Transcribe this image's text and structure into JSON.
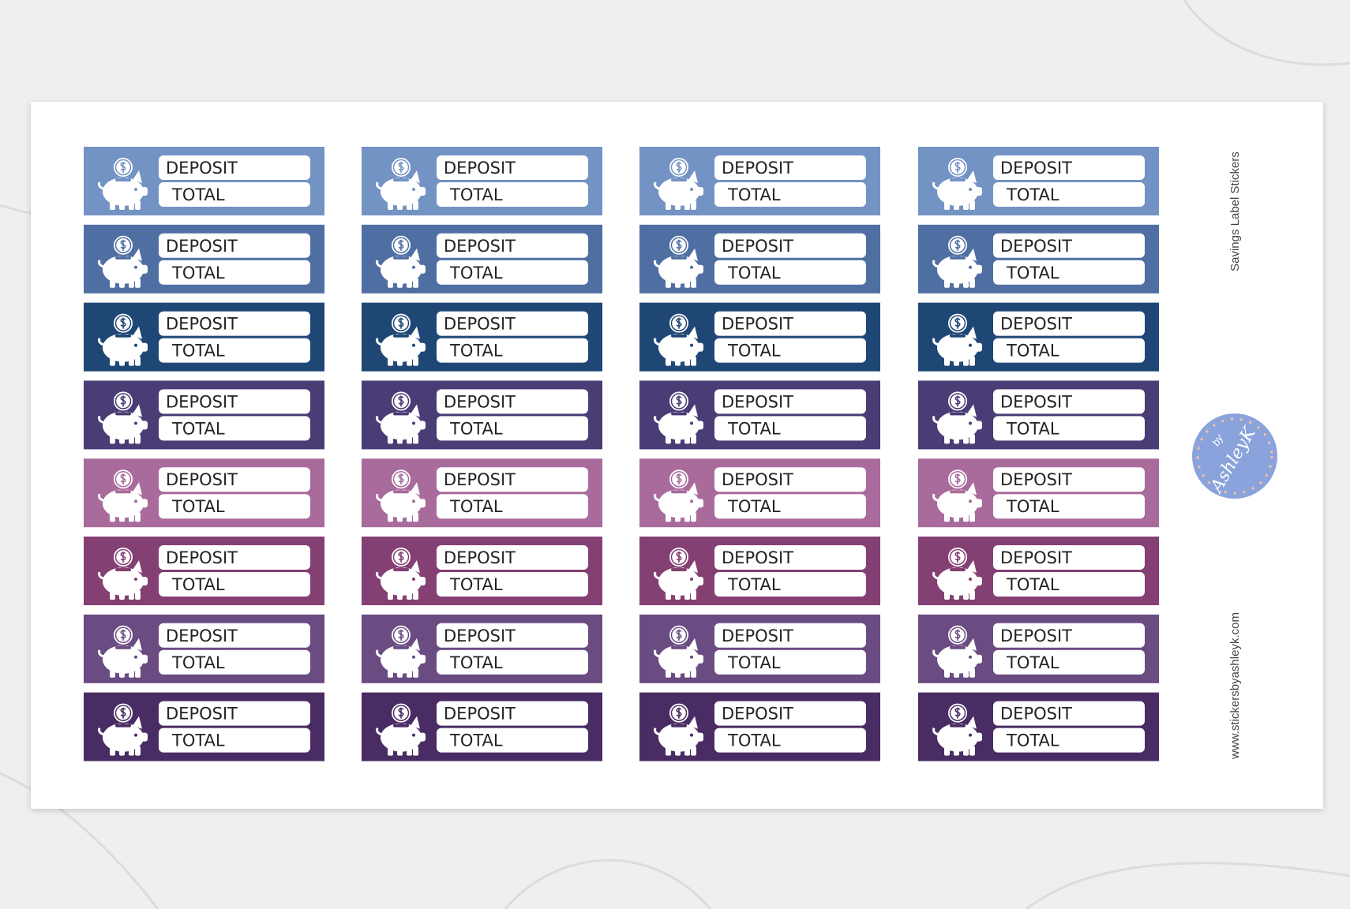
{
  "sheet": {
    "title": "Savings Label Stickers",
    "website": "www.stickersbyashleyk.com",
    "logo": {
      "top": "by",
      "name": "AshleyK"
    },
    "fields": [
      "DEPOSIT",
      "TOTAL"
    ],
    "rows": [
      {
        "color": "#7393c4"
      },
      {
        "color": "#4f6fa3"
      },
      {
        "color": "#1f4776"
      },
      {
        "color": "#4a3c75"
      },
      {
        "color": "#a86b9b"
      },
      {
        "color": "#843f73"
      },
      {
        "color": "#6a4b82"
      },
      {
        "color": "#4a2c64"
      }
    ]
  }
}
